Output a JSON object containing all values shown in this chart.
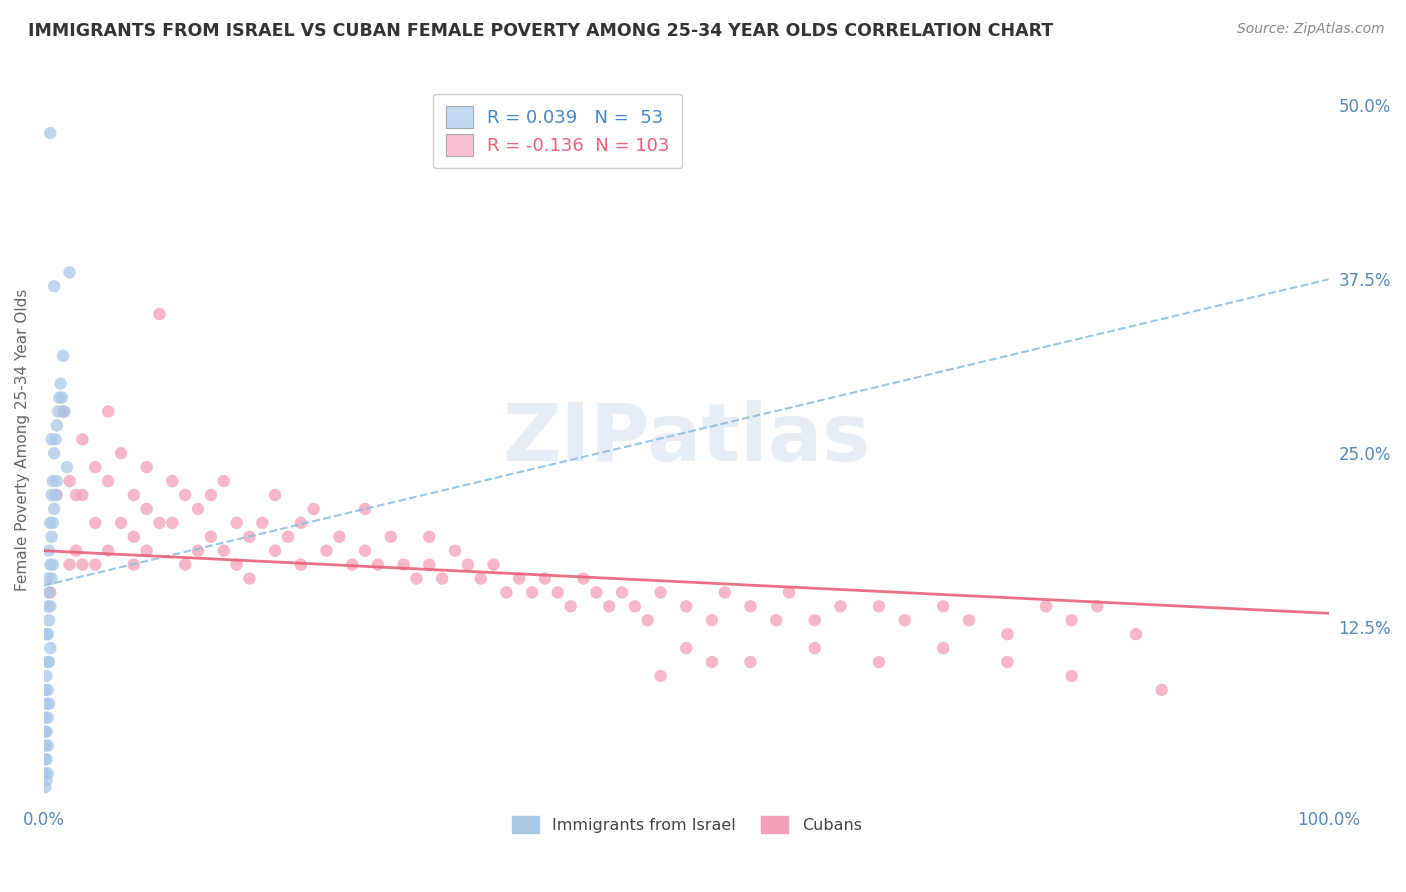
{
  "title": "IMMIGRANTS FROM ISRAEL VS CUBAN FEMALE POVERTY AMONG 25-34 YEAR OLDS CORRELATION CHART",
  "source": "Source: ZipAtlas.com",
  "ylabel": "Female Poverty Among 25-34 Year Olds",
  "xlim": [
    0.0,
    1.0
  ],
  "ylim": [
    0.0,
    0.52
  ],
  "ytick_labels_right": [
    "12.5%",
    "25.0%",
    "37.5%",
    "50.0%"
  ],
  "ytick_positions_right": [
    0.125,
    0.25,
    0.375,
    0.5
  ],
  "israel_R": 0.039,
  "israel_N": 53,
  "cuban_R": -0.136,
  "cuban_N": 103,
  "israel_color": "#a8c8e8",
  "cuban_color": "#f4a0b8",
  "trend_line_color_israel": "#88bbdd",
  "trend_line_color_cuban": "#e8607a",
  "legend_box_israel": "#c0d8f0",
  "legend_box_cuban": "#f8c0d0",
  "watermark": "ZIPatlas",
  "watermark_color": "#c8d8e8",
  "background_color": "#ffffff",
  "grid_color": "#cccccc",
  "title_color": "#333333",
  "israel_trend_start_y": 0.155,
  "israel_trend_end_y": 0.375,
  "cuban_trend_start_y": 0.18,
  "cuban_trend_end_y": 0.135,
  "israel_x": [
    0.001,
    0.001,
    0.001,
    0.001,
    0.001,
    0.001,
    0.001,
    0.002,
    0.002,
    0.002,
    0.002,
    0.002,
    0.002,
    0.003,
    0.003,
    0.003,
    0.003,
    0.003,
    0.003,
    0.003,
    0.003,
    0.004,
    0.004,
    0.004,
    0.004,
    0.004,
    0.005,
    0.005,
    0.005,
    0.005,
    0.006,
    0.006,
    0.006,
    0.007,
    0.007,
    0.007,
    0.008,
    0.008,
    0.009,
    0.009,
    0.01,
    0.01,
    0.011,
    0.012,
    0.013,
    0.014,
    0.015,
    0.016,
    0.018,
    0.02,
    0.005,
    0.008,
    0.006
  ],
  "israel_y": [
    0.08,
    0.06,
    0.05,
    0.04,
    0.03,
    0.02,
    0.01,
    0.12,
    0.09,
    0.07,
    0.05,
    0.03,
    0.015,
    0.16,
    0.14,
    0.12,
    0.1,
    0.08,
    0.06,
    0.04,
    0.02,
    0.18,
    0.15,
    0.13,
    0.1,
    0.07,
    0.2,
    0.17,
    0.14,
    0.11,
    0.22,
    0.19,
    0.16,
    0.23,
    0.2,
    0.17,
    0.25,
    0.21,
    0.26,
    0.22,
    0.27,
    0.23,
    0.28,
    0.29,
    0.3,
    0.29,
    0.32,
    0.28,
    0.24,
    0.38,
    0.48,
    0.37,
    0.26
  ],
  "cuban_x": [
    0.005,
    0.01,
    0.015,
    0.02,
    0.02,
    0.025,
    0.025,
    0.03,
    0.03,
    0.03,
    0.04,
    0.04,
    0.04,
    0.05,
    0.05,
    0.05,
    0.06,
    0.06,
    0.07,
    0.07,
    0.07,
    0.08,
    0.08,
    0.08,
    0.09,
    0.09,
    0.1,
    0.1,
    0.11,
    0.11,
    0.12,
    0.12,
    0.13,
    0.13,
    0.14,
    0.14,
    0.15,
    0.15,
    0.16,
    0.16,
    0.17,
    0.18,
    0.18,
    0.19,
    0.2,
    0.2,
    0.21,
    0.22,
    0.23,
    0.24,
    0.25,
    0.25,
    0.26,
    0.27,
    0.28,
    0.29,
    0.3,
    0.3,
    0.31,
    0.32,
    0.33,
    0.34,
    0.35,
    0.36,
    0.37,
    0.38,
    0.39,
    0.4,
    0.41,
    0.42,
    0.43,
    0.44,
    0.45,
    0.46,
    0.47,
    0.48,
    0.5,
    0.52,
    0.53,
    0.55,
    0.57,
    0.58,
    0.6,
    0.62,
    0.65,
    0.67,
    0.7,
    0.72,
    0.75,
    0.78,
    0.8,
    0.82,
    0.85,
    0.52,
    0.48,
    0.5,
    0.55,
    0.6,
    0.65,
    0.7,
    0.75,
    0.8,
    0.87
  ],
  "cuban_y": [
    0.15,
    0.22,
    0.28,
    0.23,
    0.17,
    0.22,
    0.18,
    0.26,
    0.22,
    0.17,
    0.24,
    0.2,
    0.17,
    0.28,
    0.23,
    0.18,
    0.25,
    0.2,
    0.22,
    0.19,
    0.17,
    0.24,
    0.21,
    0.18,
    0.35,
    0.2,
    0.23,
    0.2,
    0.22,
    0.17,
    0.21,
    0.18,
    0.22,
    0.19,
    0.23,
    0.18,
    0.2,
    0.17,
    0.19,
    0.16,
    0.2,
    0.22,
    0.18,
    0.19,
    0.2,
    0.17,
    0.21,
    0.18,
    0.19,
    0.17,
    0.21,
    0.18,
    0.17,
    0.19,
    0.17,
    0.16,
    0.19,
    0.17,
    0.16,
    0.18,
    0.17,
    0.16,
    0.17,
    0.15,
    0.16,
    0.15,
    0.16,
    0.15,
    0.14,
    0.16,
    0.15,
    0.14,
    0.15,
    0.14,
    0.13,
    0.15,
    0.14,
    0.13,
    0.15,
    0.14,
    0.13,
    0.15,
    0.13,
    0.14,
    0.14,
    0.13,
    0.14,
    0.13,
    0.12,
    0.14,
    0.13,
    0.14,
    0.12,
    0.1,
    0.09,
    0.11,
    0.1,
    0.11,
    0.1,
    0.11,
    0.1,
    0.09,
    0.08
  ]
}
